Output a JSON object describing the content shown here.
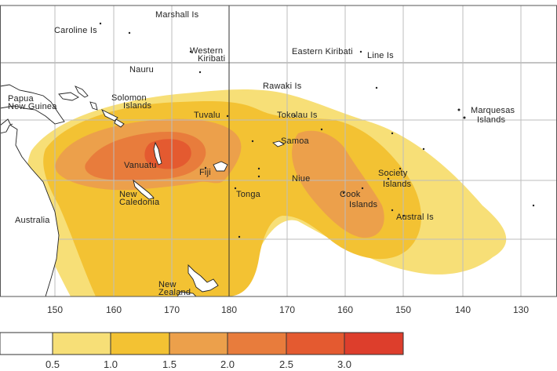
{
  "map": {
    "place_labels": [
      {
        "id": "marshall",
        "text": "Marshall Is"
      },
      {
        "id": "caroline",
        "text": "Caroline Is"
      },
      {
        "id": "western-kiribati-1",
        "text": "Western"
      },
      {
        "id": "western-kiribati-2",
        "text": "Kiribati"
      },
      {
        "id": "eastern-kiribati",
        "text": "Eastern Kiribati"
      },
      {
        "id": "line",
        "text": "Line Is"
      },
      {
        "id": "nauru",
        "text": "Nauru"
      },
      {
        "id": "rawaki",
        "text": "Rawaki Is"
      },
      {
        "id": "png-1",
        "text": "Papua"
      },
      {
        "id": "png-2",
        "text": "New Guinea"
      },
      {
        "id": "solomon-1",
        "text": "Solomon"
      },
      {
        "id": "solomon-2",
        "text": "Islands"
      },
      {
        "id": "tuvalu",
        "text": "Tuvalu"
      },
      {
        "id": "tokelau",
        "text": "Tokelau Is"
      },
      {
        "id": "marquesas-1",
        "text": "Marquesas"
      },
      {
        "id": "marquesas-2",
        "text": "Islands"
      },
      {
        "id": "samoa",
        "text": "Samoa"
      },
      {
        "id": "vanuatu",
        "text": "Vanuatu"
      },
      {
        "id": "fiji",
        "text": "Fiji"
      },
      {
        "id": "niue",
        "text": "Niue"
      },
      {
        "id": "society-1",
        "text": "Society"
      },
      {
        "id": "society-2",
        "text": "Islands"
      },
      {
        "id": "new-caledonia-1",
        "text": "New"
      },
      {
        "id": "new-caledonia-2",
        "text": "Caledonia"
      },
      {
        "id": "tonga",
        "text": "Tonga"
      },
      {
        "id": "cook-1",
        "text": "Cook"
      },
      {
        "id": "cook-2",
        "text": "Islands"
      },
      {
        "id": "australia",
        "text": "Australia"
      },
      {
        "id": "austral",
        "text": "Austral Is"
      },
      {
        "id": "new-zealand-1",
        "text": "New"
      },
      {
        "id": "new-zealand-2",
        "text": "Zealand"
      }
    ],
    "longitude_ticks": [
      "150",
      "160",
      "170",
      "180",
      "170",
      "160",
      "150",
      "140",
      "130"
    ]
  },
  "legend": {
    "tick_labels": [
      "0.5",
      "1.0",
      "1.5",
      "2.0",
      "2.5",
      "3.0"
    ],
    "colors": [
      "#ffffff",
      "#f7df77",
      "#f3c233",
      "#eca04b",
      "#e87c3c",
      "#e45a30",
      "#dd3e2c"
    ]
  },
  "colors": {
    "level_1": "#f7df77",
    "level_2": "#f3c233",
    "level_3": "#eca04b",
    "level_4": "#e87c3c",
    "level_5": "#e45a30"
  }
}
